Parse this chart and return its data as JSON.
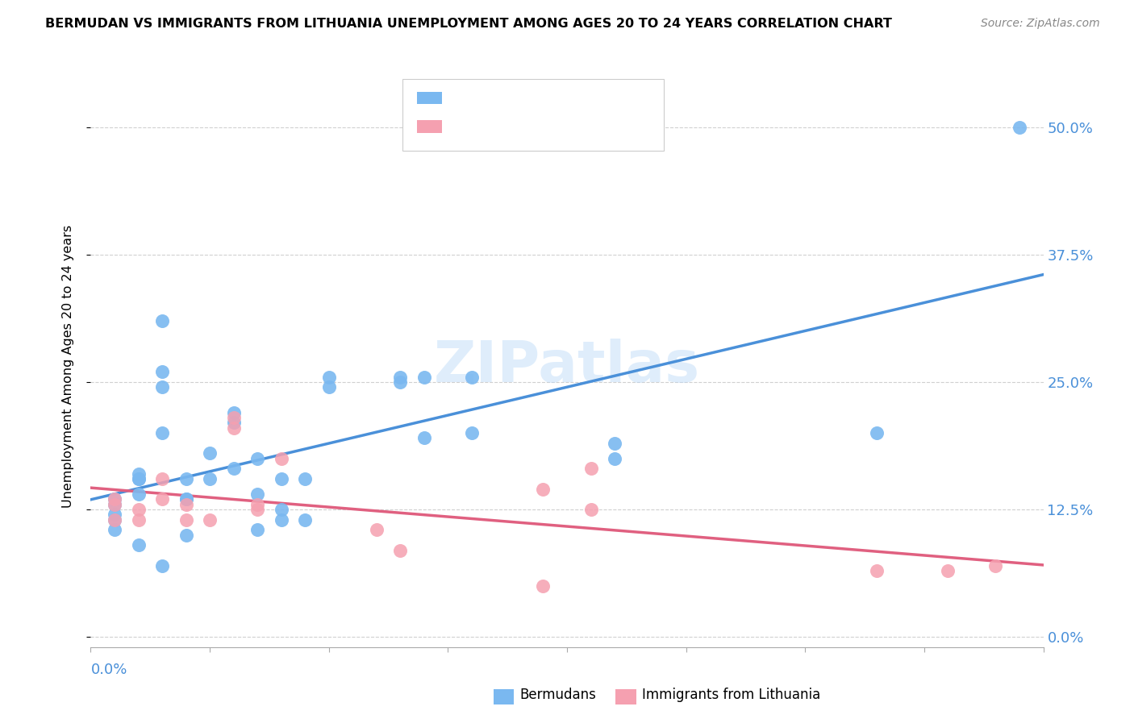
{
  "title": "BERMUDAN VS IMMIGRANTS FROM LITHUANIA UNEMPLOYMENT AMONG AGES 20 TO 24 YEARS CORRELATION CHART",
  "source": "Source: ZipAtlas.com",
  "ylabel": "Unemployment Among Ages 20 to 24 years",
  "ytick_labels": [
    "0.0%",
    "12.5%",
    "25.0%",
    "37.5%",
    "50.0%"
  ],
  "ytick_values": [
    0.0,
    0.125,
    0.25,
    0.375,
    0.5
  ],
  "xlim": [
    0.0,
    0.04
  ],
  "ylim": [
    -0.01,
    0.54
  ],
  "blue_color": "#7ab8f0",
  "pink_color": "#f5a0b0",
  "blue_line_color": "#4a90d9",
  "pink_line_color": "#e06080",
  "tick_label_color": "#4a90d9",
  "grid_color": "#d0d0d0",
  "watermark": "ZIPatlas",
  "bermudans_x": [
    0.001,
    0.001,
    0.001,
    0.001,
    0.001,
    0.002,
    0.002,
    0.002,
    0.002,
    0.002,
    0.003,
    0.003,
    0.003,
    0.003,
    0.003,
    0.004,
    0.004,
    0.004,
    0.004,
    0.005,
    0.005,
    0.006,
    0.006,
    0.006,
    0.007,
    0.007,
    0.007,
    0.008,
    0.008,
    0.008,
    0.009,
    0.009,
    0.01,
    0.01,
    0.013,
    0.013,
    0.014,
    0.014,
    0.016,
    0.016,
    0.022,
    0.022,
    0.033,
    0.039
  ],
  "bermudans_y": [
    0.13,
    0.135,
    0.12,
    0.115,
    0.105,
    0.155,
    0.16,
    0.155,
    0.14,
    0.09,
    0.31,
    0.26,
    0.245,
    0.2,
    0.07,
    0.135,
    0.155,
    0.135,
    0.1,
    0.18,
    0.155,
    0.21,
    0.165,
    0.22,
    0.175,
    0.14,
    0.105,
    0.155,
    0.125,
    0.115,
    0.155,
    0.115,
    0.255,
    0.245,
    0.255,
    0.25,
    0.255,
    0.195,
    0.255,
    0.2,
    0.19,
    0.175,
    0.2,
    0.5
  ],
  "lithuania_x": [
    0.001,
    0.001,
    0.001,
    0.002,
    0.002,
    0.003,
    0.003,
    0.004,
    0.004,
    0.005,
    0.006,
    0.006,
    0.007,
    0.007,
    0.008,
    0.012,
    0.013,
    0.019,
    0.019,
    0.021,
    0.021,
    0.033,
    0.036,
    0.038
  ],
  "lithuania_y": [
    0.135,
    0.13,
    0.115,
    0.125,
    0.115,
    0.155,
    0.135,
    0.13,
    0.115,
    0.115,
    0.205,
    0.215,
    0.125,
    0.13,
    0.175,
    0.105,
    0.085,
    0.145,
    0.05,
    0.165,
    0.125,
    0.065,
    0.065,
    0.07
  ]
}
